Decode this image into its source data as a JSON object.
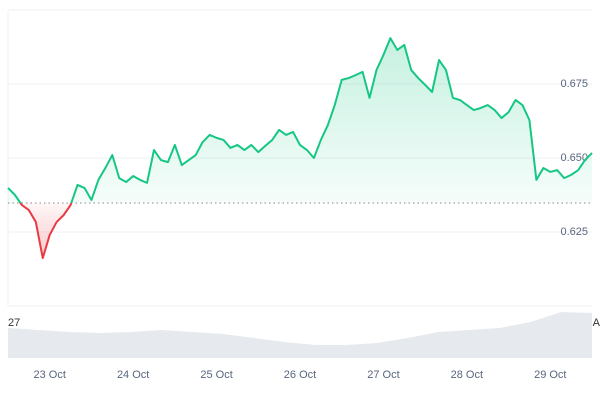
{
  "chart_data": {
    "type": "line",
    "categories": [
      null,
      null,
      null,
      null,
      null,
      null,
      "23 Oct",
      null,
      null,
      null,
      null,
      null,
      null,
      null,
      null,
      null,
      null,
      null,
      "24 Oct",
      null,
      null,
      null,
      null,
      null,
      null,
      null,
      null,
      null,
      null,
      null,
      "25 Oct",
      null,
      null,
      null,
      null,
      null,
      null,
      null,
      null,
      null,
      null,
      null,
      "26 Oct",
      null,
      null,
      null,
      null,
      null,
      null,
      null,
      null,
      null,
      null,
      null,
      "27 Oct",
      null,
      null,
      null,
      null,
      null,
      null,
      null,
      null,
      null,
      null,
      null,
      "28 Oct",
      null,
      null,
      null,
      null,
      null,
      null,
      null,
      null,
      null,
      null,
      null,
      "29 Oct",
      null,
      null,
      null,
      null,
      null,
      null
    ],
    "series": [
      {
        "color": "#16c784",
        "below_color": "#ea3943",
        "values": [
          0.6399,
          0.6375,
          0.6341,
          0.6324,
          0.6284,
          0.6162,
          0.624,
          0.6284,
          0.6307,
          0.6341,
          0.6409,
          0.6399,
          0.6358,
          0.6426,
          0.6466,
          0.651,
          0.6432,
          0.6419,
          0.6439,
          0.6426,
          0.6416,
          0.6527,
          0.6493,
          0.6486,
          0.6544,
          0.6476,
          0.6493,
          0.651,
          0.6554,
          0.6578,
          0.6568,
          0.6561,
          0.6534,
          0.6544,
          0.6527,
          0.6544,
          0.652,
          0.6541,
          0.6561,
          0.6595,
          0.6578,
          0.6588,
          0.6544,
          0.6527,
          0.65,
          0.6561,
          0.6611,
          0.6679,
          0.6764,
          0.677,
          0.678,
          0.6791,
          0.6703,
          0.6797,
          0.6848,
          0.6905,
          0.6865,
          0.6882,
          0.6797,
          0.677,
          0.6747,
          0.6723,
          0.6831,
          0.6797,
          0.6703,
          0.6696,
          0.6679,
          0.6662,
          0.6669,
          0.6679,
          0.6662,
          0.6635,
          0.6655,
          0.6696,
          0.6679,
          0.6628,
          0.6426,
          0.6466,
          0.6453,
          0.6459,
          0.6432,
          0.6443,
          0.6459,
          0.6493,
          0.6517
        ]
      }
    ],
    "reference_value": 0.6348,
    "ylim": [
      0.6,
      0.7
    ],
    "yticks": [
      0.625,
      {
        "value": 0.65,
        "label": "0.650"
      },
      0.675
    ],
    "grid": true,
    "volume": {
      "color": "#e6e9ee",
      "values": [
        30,
        28,
        26,
        25,
        26,
        28,
        26,
        24,
        20,
        16,
        13,
        13,
        15,
        20,
        26,
        28,
        30,
        36,
        46,
        45
      ],
      "lim": [
        0,
        50
      ]
    },
    "annotations": [
      "27",
      "A"
    ]
  }
}
